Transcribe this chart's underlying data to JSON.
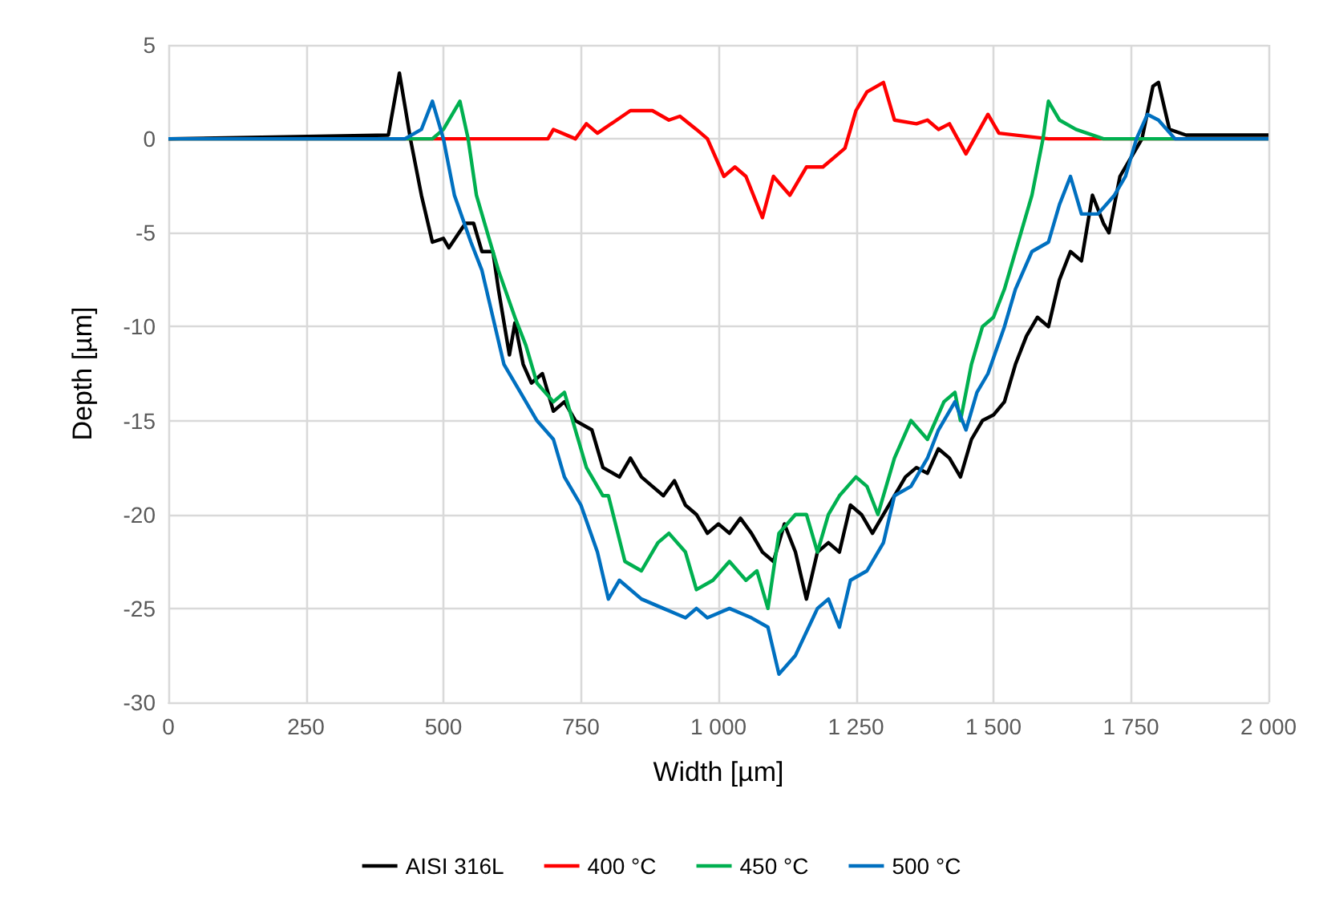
{
  "chart_data": {
    "type": "line",
    "xlabel": "Width [µm]",
    "ylabel": "Depth [µm]",
    "xlim": [
      0,
      2000
    ],
    "ylim": [
      -30,
      5
    ],
    "xticks": [
      0,
      250,
      500,
      750,
      {
        "value": 1000,
        "label": "1 000"
      },
      {
        "value": 1250,
        "label": "1 250"
      },
      {
        "value": 1500,
        "label": "1 500"
      },
      {
        "value": 1750,
        "label": "1 750"
      },
      {
        "value": 2000,
        "label": "2 000"
      }
    ],
    "yticks": [
      -30,
      -25,
      -20,
      -15,
      -10,
      -5,
      0,
      5
    ],
    "grid": true,
    "legend": "bottom",
    "marker": "none",
    "line_style": "solid",
    "series": [
      {
        "name": "AISI 316L",
        "color": "#000000",
        "x": [
          0,
          400,
          420,
          440,
          460,
          480,
          500,
          510,
          540,
          555,
          570,
          590,
          600,
          620,
          630,
          645,
          660,
          680,
          700,
          720,
          740,
          770,
          790,
          820,
          840,
          860,
          880,
          900,
          920,
          940,
          960,
          980,
          1000,
          1020,
          1040,
          1060,
          1080,
          1100,
          1120,
          1140,
          1160,
          1180,
          1200,
          1220,
          1240,
          1260,
          1280,
          1300,
          1320,
          1340,
          1360,
          1380,
          1400,
          1420,
          1440,
          1460,
          1480,
          1500,
          1520,
          1540,
          1560,
          1580,
          1600,
          1620,
          1640,
          1660,
          1680,
          1700,
          1710,
          1730,
          1750,
          1770,
          1790,
          1800,
          1820,
          1850,
          2000
        ],
        "values": [
          0,
          0.2,
          3.5,
          0,
          -3,
          -5.5,
          -5.3,
          -5.8,
          -4.5,
          -4.5,
          -6,
          -6,
          -8,
          -11.5,
          -9.8,
          -12,
          -13,
          -12.5,
          -14.5,
          -14,
          -15,
          -15.5,
          -17.5,
          -18,
          -17,
          -18,
          -18.5,
          -19,
          -18.2,
          -19.5,
          -20,
          -21,
          -20.5,
          -21,
          -20.2,
          -21,
          -22,
          -22.5,
          -20.5,
          -22,
          -24.5,
          -22,
          -21.5,
          -22,
          -19.5,
          -20,
          -21,
          -20,
          -19,
          -18,
          -17.5,
          -17.8,
          -16.5,
          -17,
          -18,
          -16,
          -15,
          -14.7,
          -14,
          -12,
          -10.5,
          -9.5,
          -10,
          -7.5,
          -6,
          -6.5,
          -3,
          -4.5,
          -5,
          -2,
          -1,
          0,
          2.8,
          3,
          0.5,
          0.2,
          0.2
        ]
      },
      {
        "name": "400 °C",
        "color": "#ff0000",
        "x": [
          0,
          690,
          700,
          740,
          760,
          780,
          840,
          880,
          910,
          930,
          960,
          980,
          1010,
          1030,
          1050,
          1080,
          1100,
          1130,
          1160,
          1190,
          1210,
          1230,
          1250,
          1270,
          1300,
          1320,
          1360,
          1380,
          1400,
          1420,
          1450,
          1490,
          1510,
          1600,
          2000
        ],
        "values": [
          0,
          0,
          0.5,
          0,
          0.8,
          0.3,
          1.5,
          1.5,
          1,
          1.2,
          0.5,
          0,
          -2,
          -1.5,
          -2,
          -4.2,
          -2,
          -3,
          -1.5,
          -1.5,
          -1,
          -0.5,
          1.5,
          2.5,
          3,
          1,
          0.8,
          1,
          0.5,
          0.8,
          -0.8,
          1.3,
          0.3,
          0,
          0
        ]
      },
      {
        "name": "450 °C",
        "color": "#00b050",
        "x": [
          0,
          480,
          500,
          530,
          545,
          560,
          580,
          600,
          630,
          650,
          670,
          700,
          720,
          740,
          760,
          790,
          800,
          830,
          860,
          890,
          910,
          940,
          960,
          990,
          1020,
          1050,
          1070,
          1090,
          1110,
          1140,
          1160,
          1180,
          1200,
          1220,
          1250,
          1270,
          1290,
          1320,
          1350,
          1380,
          1410,
          1430,
          1440,
          1460,
          1480,
          1500,
          1520,
          1550,
          1570,
          1590,
          1600,
          1620,
          1650,
          1700,
          2000
        ],
        "values": [
          0,
          0,
          0.5,
          2,
          0,
          -3,
          -5,
          -7,
          -9.5,
          -11,
          -13,
          -14,
          -13.5,
          -15.5,
          -17.5,
          -19,
          -19,
          -22.5,
          -23,
          -21.5,
          -21,
          -22,
          -24,
          -23.5,
          -22.5,
          -23.5,
          -23,
          -25,
          -21,
          -20,
          -20,
          -22,
          -20,
          -19,
          -18,
          -18.5,
          -20,
          -17,
          -15,
          -16,
          -14,
          -13.5,
          -15,
          -12,
          -10,
          -9.5,
          -8,
          -5,
          -3,
          0,
          2,
          1,
          0.5,
          0,
          0
        ]
      },
      {
        "name": "500 °C",
        "color": "#0070c0",
        "x": [
          0,
          430,
          460,
          480,
          500,
          520,
          550,
          570,
          590,
          610,
          640,
          670,
          700,
          720,
          750,
          780,
          800,
          820,
          860,
          900,
          940,
          960,
          980,
          1020,
          1060,
          1090,
          1110,
          1140,
          1180,
          1200,
          1220,
          1240,
          1270,
          1300,
          1320,
          1350,
          1380,
          1400,
          1430,
          1450,
          1470,
          1490,
          1520,
          1540,
          1570,
          1600,
          1620,
          1640,
          1660,
          1690,
          1720,
          1740,
          1760,
          1780,
          1800,
          1830,
          2000
        ],
        "values": [
          0,
          0,
          0.5,
          2,
          0,
          -3,
          -5.5,
          -7,
          -9.5,
          -12,
          -13.5,
          -15,
          -16,
          -18,
          -19.5,
          -22,
          -24.5,
          -23.5,
          -24.5,
          -25,
          -25.5,
          -25,
          -25.5,
          -25,
          -25.5,
          -26,
          -28.5,
          -27.5,
          -25,
          -24.5,
          -26,
          -23.5,
          -23,
          -21.5,
          -19,
          -18.5,
          -17,
          -15.5,
          -14,
          -15.5,
          -13.5,
          -12.5,
          -10,
          -8,
          -6,
          -5.5,
          -3.5,
          -2,
          -4,
          -4,
          -3,
          -2,
          0,
          1.3,
          1,
          0,
          0
        ]
      }
    ]
  }
}
